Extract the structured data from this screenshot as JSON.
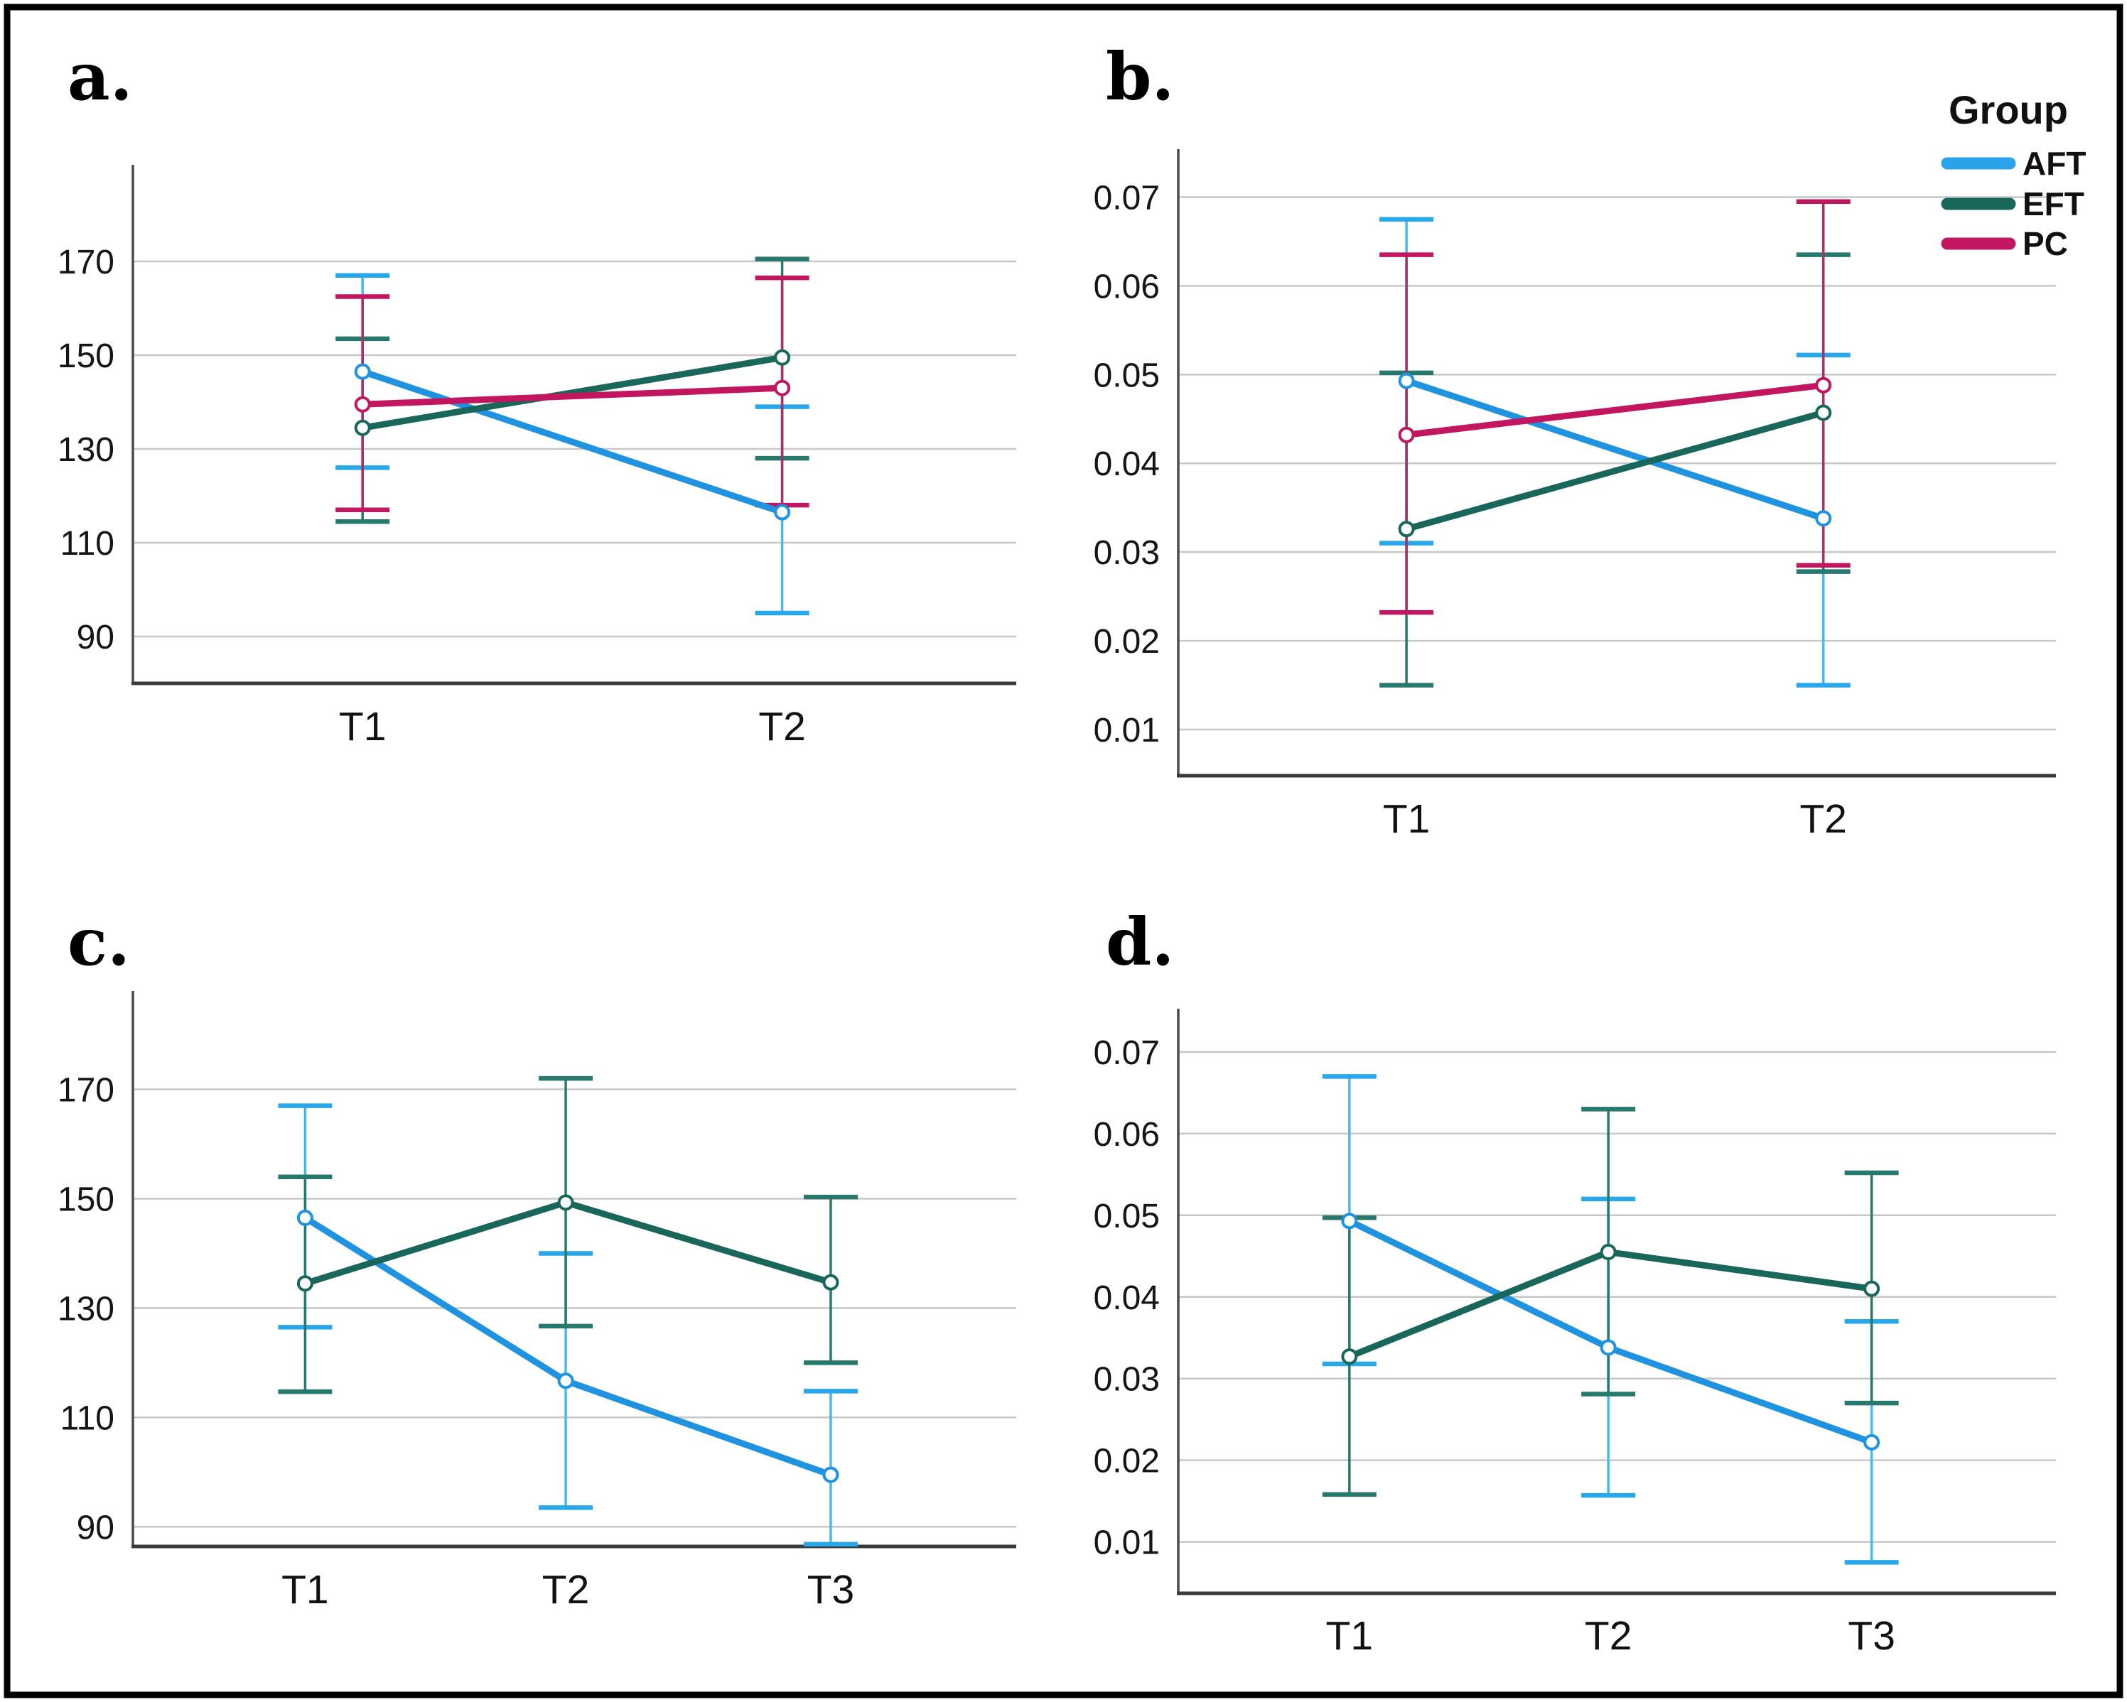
{
  "figure": {
    "background": "#ffffff",
    "border_color": "#000000",
    "gridline_color": "#c7c7c7",
    "axis_color": "#4a4a4a",
    "legend": {
      "title": "Group",
      "items": [
        {
          "label": "AFT",
          "color": "#2aa3e8"
        },
        {
          "label": "EFT",
          "color": "#19665a"
        },
        {
          "label": "PC",
          "color": "#c21760"
        }
      ]
    }
  },
  "chart_data": [
    {
      "id": "a",
      "label": "a.",
      "type": "line",
      "categories": [
        "T1",
        "T2"
      ],
      "xlabel": "",
      "ylabel": "",
      "yticks": [
        90,
        110,
        130,
        150,
        170
      ],
      "ytick_labels": [
        "90",
        "110",
        "130",
        "150",
        "170"
      ],
      "ylim": [
        80,
        190.6
      ],
      "grid": true,
      "legend_position": "top-right-of-figure",
      "series": [
        {
          "name": "AFT",
          "color": "#1f93e0",
          "cap_color": "#2aa7e9",
          "whisker_color": "#44bbef",
          "values": [
            146.5,
            116.5
          ],
          "ci_low": [
            126,
            95
          ],
          "ci_high": [
            167,
            139
          ]
        },
        {
          "name": "EFT",
          "color": "#19665a",
          "cap_color": "#27796d",
          "whisker_color": "#27796d",
          "values": [
            134.5,
            149.5
          ],
          "ci_low": [
            114.5,
            128
          ],
          "ci_high": [
            153.5,
            170.5
          ]
        },
        {
          "name": "PC",
          "color": "#c21760",
          "cap_color": "#c21760",
          "whisker_color": "#aa3069",
          "values": [
            139.5,
            143
          ],
          "ci_low": [
            117,
            118
          ],
          "ci_high": [
            162.5,
            166.5
          ]
        }
      ]
    },
    {
      "id": "b",
      "label": "b.",
      "type": "line",
      "categories": [
        "T1",
        "T2"
      ],
      "xlabel": "",
      "ylabel": "",
      "yticks": [
        0.01,
        0.02,
        0.03,
        0.04,
        0.05,
        0.06,
        0.07
      ],
      "ytick_labels": [
        "0.01",
        "0.02",
        "0.03",
        "0.04",
        "0.05",
        "0.06",
        "0.07"
      ],
      "ylim": [
        0.0048,
        0.0754
      ],
      "grid": true,
      "series": [
        {
          "name": "AFT",
          "color": "#1f93e0",
          "cap_color": "#2aa7e9",
          "whisker_color": "#44bbef",
          "values": [
            0.0493,
            0.0338
          ],
          "ci_low": [
            0.031,
            0.015
          ],
          "ci_high": [
            0.0675,
            0.0522
          ]
        },
        {
          "name": "EFT",
          "color": "#19665a",
          "cap_color": "#27796d",
          "whisker_color": "#27796d",
          "values": [
            0.0326,
            0.0457
          ],
          "ci_low": [
            0.015,
            0.0278
          ],
          "ci_high": [
            0.0502,
            0.0635
          ]
        },
        {
          "name": "PC",
          "color": "#c21760",
          "cap_color": "#c21760",
          "whisker_color": "#aa3069",
          "values": [
            0.0432,
            0.0488
          ],
          "ci_low": [
            0.0232,
            0.0285
          ],
          "ci_high": [
            0.0635,
            0.0695
          ]
        }
      ]
    },
    {
      "id": "c",
      "label": "c.",
      "type": "line",
      "categories": [
        "T1",
        "T2",
        "T3"
      ],
      "xlabel": "",
      "ylabel": "",
      "yticks": [
        90,
        110,
        130,
        150,
        170
      ],
      "ytick_labels": [
        "90",
        "110",
        "130",
        "150",
        "170"
      ],
      "ylim": [
        86.4,
        188
      ],
      "grid": true,
      "series": [
        {
          "name": "AFT",
          "color": "#1f93e0",
          "cap_color": "#2aa7e9",
          "whisker_color": "#44bbef",
          "values": [
            146.5,
            116.7,
            99.5
          ],
          "ci_low": [
            126.5,
            93.5,
            86.8
          ],
          "ci_high": [
            167,
            140,
            114.8
          ]
        },
        {
          "name": "EFT",
          "color": "#19665a",
          "cap_color": "#27796d",
          "whisker_color": "#27796d",
          "values": [
            134.5,
            149.3,
            134.7
          ],
          "ci_low": [
            114.7,
            126.7,
            120
          ],
          "ci_high": [
            154,
            172,
            150.3
          ]
        }
      ]
    },
    {
      "id": "d",
      "label": "d.",
      "type": "line",
      "categories": [
        "T1",
        "T2",
        "T3"
      ],
      "xlabel": "",
      "ylabel": "",
      "yticks": [
        0.01,
        0.02,
        0.03,
        0.04,
        0.05,
        0.06,
        0.07
      ],
      "ytick_labels": [
        "0.01",
        "0.02",
        "0.03",
        "0.04",
        "0.05",
        "0.06",
        "0.07"
      ],
      "ylim": [
        0.0037,
        0.0753
      ],
      "grid": true,
      "series": [
        {
          "name": "AFT",
          "color": "#1f93e0",
          "cap_color": "#2aa7e9",
          "whisker_color": "#44bbef",
          "values": [
            0.0493,
            0.0338,
            0.0222
          ],
          "ci_low": [
            0.0318,
            0.0157,
            0.0075
          ],
          "ci_high": [
            0.067,
            0.052,
            0.037
          ]
        },
        {
          "name": "EFT",
          "color": "#19665a",
          "cap_color": "#27796d",
          "whisker_color": "#27796d",
          "values": [
            0.0327,
            0.0455,
            0.041
          ],
          "ci_low": [
            0.0158,
            0.0281,
            0.027
          ],
          "ci_high": [
            0.0497,
            0.063,
            0.0552
          ]
        }
      ]
    }
  ]
}
